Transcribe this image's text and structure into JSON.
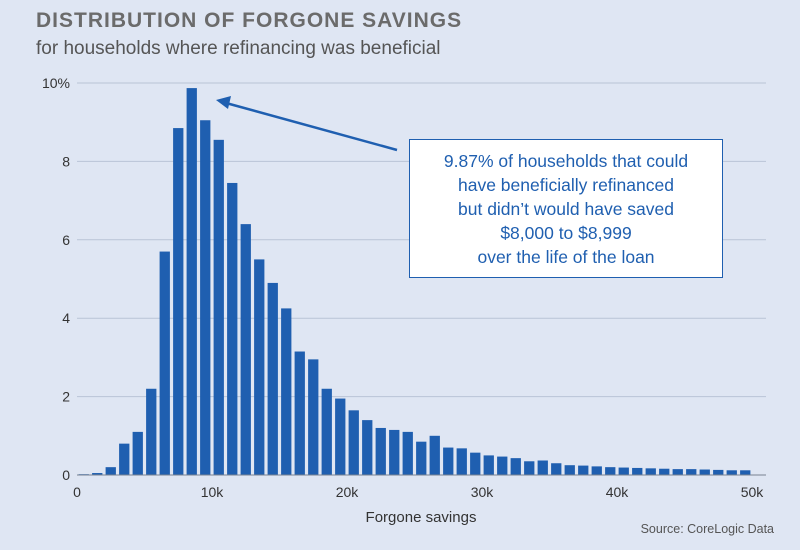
{
  "chart_data": {
    "type": "bar",
    "title": "DISTRIBUTION OF FORGONE SAVINGS",
    "subtitle": "for households where refinancing was beneficial",
    "xlabel": "Forgone savings",
    "ylabel": "",
    "source": "Source: CoreLogic Data",
    "bin_width": 1000,
    "x_start": 0,
    "values": [
      0.02,
      0.05,
      0.2,
      0.8,
      1.1,
      2.2,
      5.7,
      8.85,
      9.87,
      9.05,
      8.55,
      7.45,
      6.4,
      5.5,
      4.9,
      4.25,
      3.15,
      2.95,
      2.2,
      1.95,
      1.65,
      1.4,
      1.2,
      1.15,
      1.1,
      0.85,
      1.0,
      0.7,
      0.68,
      0.57,
      0.5,
      0.47,
      0.43,
      0.35,
      0.37,
      0.3,
      0.25,
      0.24,
      0.22,
      0.2,
      0.19,
      0.18,
      0.17,
      0.16,
      0.15,
      0.15,
      0.14,
      0.13,
      0.12,
      0.12
    ],
    "xlim": [
      0,
      50000
    ],
    "ylim": [
      0,
      10
    ],
    "x_ticks": [
      0,
      10000,
      20000,
      30000,
      40000,
      50000
    ],
    "x_tick_labels": [
      "0",
      "10k",
      "20k",
      "30k",
      "40k",
      "50k"
    ],
    "y_ticks": [
      0,
      2,
      4,
      6,
      8,
      10
    ],
    "y_tick_labels": [
      "0",
      "2",
      "4",
      "6",
      "8",
      "10%"
    ],
    "grid": "horizontal",
    "colors": {
      "bar": "#1f5fb0",
      "background": "#dfe6f3",
      "grid": "#b9c4d6"
    },
    "annotation": {
      "lines": [
        "9.87% of households that could",
        "have beneficially refinanced",
        "but didn’t would have saved",
        "$8,000 to $8,999",
        "over the life of the loan"
      ],
      "points_to_bin": 8
    }
  }
}
